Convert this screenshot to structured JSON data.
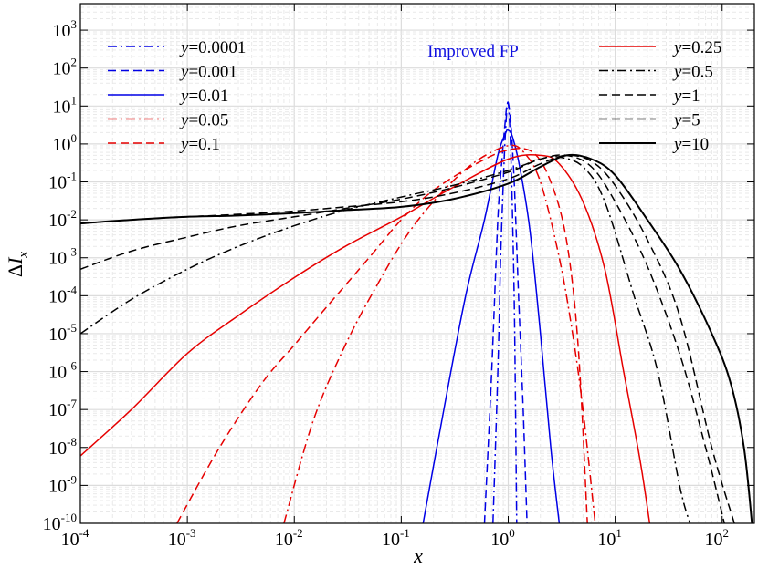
{
  "chart_data": {
    "type": "line",
    "title": "",
    "annotation": "Improved FP",
    "xlabel": "x",
    "ylabel_prefix": "Δ",
    "ylabel_var": "I",
    "ylabel_sub": "x",
    "x_scale": "log",
    "y_scale": "log",
    "xlim": [
      0.0001,
      200
    ],
    "ylim": [
      1e-10,
      5000
    ],
    "grid": true,
    "legend_placement": "top-left and top-right",
    "x_ticks": [
      {
        "base": "10",
        "exp": "-4",
        "value": 0.0001
      },
      {
        "base": "10",
        "exp": "-3",
        "value": 0.001
      },
      {
        "base": "10",
        "exp": "-2",
        "value": 0.01
      },
      {
        "base": "10",
        "exp": "-1",
        "value": 0.1
      },
      {
        "base": "10",
        "exp": "0",
        "value": 1
      },
      {
        "base": "10",
        "exp": "1",
        "value": 10
      },
      {
        "base": "10",
        "exp": "2",
        "value": 100
      }
    ],
    "y_ticks": [
      {
        "base": "10",
        "exp": "-10",
        "value": 1e-10
      },
      {
        "base": "10",
        "exp": "-9",
        "value": 1e-09
      },
      {
        "base": "10",
        "exp": "-8",
        "value": 1e-08
      },
      {
        "base": "10",
        "exp": "-7",
        "value": 1e-07
      },
      {
        "base": "10",
        "exp": "-6",
        "value": 1e-06
      },
      {
        "base": "10",
        "exp": "-5",
        "value": 1e-05
      },
      {
        "base": "10",
        "exp": "-4",
        "value": 0.0001
      },
      {
        "base": "10",
        "exp": "-3",
        "value": 0.001
      },
      {
        "base": "10",
        "exp": "-2",
        "value": 0.01
      },
      {
        "base": "10",
        "exp": "-1",
        "value": 0.1
      },
      {
        "base": "10",
        "exp": "0",
        "value": 1
      },
      {
        "base": "10",
        "exp": "1",
        "value": 10
      },
      {
        "base": "10",
        "exp": "2",
        "value": 100
      },
      {
        "base": "10",
        "exp": "3",
        "value": 1000
      }
    ],
    "series": [
      {
        "name": "y=0.0001",
        "var": "y",
        "value_text": "=0.0001",
        "color": "#0000e6",
        "dash": "dashdot",
        "legend_col": 0,
        "x": [
          0.72,
          0.8,
          0.85,
          0.9,
          0.93,
          0.96,
          0.98,
          1.0,
          1.02,
          1.05,
          1.1,
          1.15,
          1.2
        ],
        "y": [
          1e-10,
          1e-06,
          0.001,
          0.1,
          1,
          5,
          11,
          12,
          6,
          1,
          0.01,
          1e-05,
          1e-10
        ]
      },
      {
        "name": "y=0.001",
        "var": "y",
        "value_text": "=0.001",
        "color": "#0000e6",
        "dash": "dashed",
        "legend_col": 0,
        "x": [
          0.6,
          0.7,
          0.8,
          0.88,
          0.93,
          0.97,
          1.0,
          1.03,
          1.08,
          1.15,
          1.25,
          1.38,
          1.5
        ],
        "y": [
          1e-10,
          1e-06,
          0.01,
          0.5,
          3,
          10,
          12,
          7,
          1.5,
          0.05,
          0.0001,
          1e-07,
          1e-10
        ]
      },
      {
        "name": "y=0.01",
        "var": "y",
        "value_text": "=0.01",
        "color": "#0000e6",
        "dash": "solid",
        "legend_col": 0,
        "x": [
          0.16,
          0.25,
          0.4,
          0.6,
          0.8,
          0.95,
          1.0,
          1.1,
          1.3,
          1.6,
          2.0,
          2.5,
          3.0
        ],
        "y": [
          1e-10,
          1e-07,
          0.0001,
          0.01,
          0.5,
          2,
          2.3,
          1.5,
          0.2,
          0.005,
          1e-05,
          1e-08,
          1e-10
        ]
      },
      {
        "name": "y=0.05",
        "var": "y",
        "value_text": "=0.05",
        "color": "#e60000",
        "dash": "dashdot",
        "legend_col": 0,
        "x": [
          0.008,
          0.015,
          0.03,
          0.06,
          0.12,
          0.25,
          0.5,
          1.0,
          1.4,
          2.0,
          3.0,
          4.0,
          5.0,
          6.5
        ],
        "y": [
          1e-10,
          5e-08,
          5e-06,
          0.0002,
          0.005,
          0.06,
          0.35,
          0.9,
          0.6,
          0.1,
          0.001,
          1e-05,
          1e-07,
          1e-10
        ]
      },
      {
        "name": "y=0.1",
        "var": "y",
        "value_text": "=0.1",
        "color": "#e60000",
        "dash": "dashed",
        "legend_col": 0,
        "x": [
          0.0008,
          0.002,
          0.005,
          0.01,
          0.02,
          0.05,
          0.1,
          0.2,
          0.5,
          1.0,
          1.7,
          2.5,
          3.5,
          4.5,
          5.5
        ],
        "y": [
          1e-10,
          1e-08,
          5e-07,
          5e-06,
          5e-05,
          0.001,
          0.01,
          0.06,
          0.3,
          0.7,
          0.6,
          0.1,
          0.003,
          5e-06,
          1e-10
        ]
      },
      {
        "name": "y=0.25",
        "var": "y",
        "value_text": "=0.25",
        "color": "#e60000",
        "dash": "solid",
        "legend_col": 1,
        "x": [
          0.0001,
          0.0003,
          0.001,
          0.003,
          0.01,
          0.03,
          0.1,
          0.3,
          1.0,
          2.0,
          3.0,
          5.0,
          8.0,
          12.0,
          17.0,
          21.0
        ],
        "y": [
          6e-09,
          1e-07,
          3e-06,
          3e-05,
          0.0003,
          0.002,
          0.012,
          0.07,
          0.4,
          0.5,
          0.3,
          0.03,
          0.0005,
          1e-06,
          5e-09,
          1e-10
        ]
      },
      {
        "name": "y=0.5",
        "var": "y",
        "value_text": "=0.5",
        "color": "#000000",
        "dash": "dashdot",
        "legend_col": 1,
        "x": [
          0.0001,
          0.0003,
          0.001,
          0.003,
          0.01,
          0.03,
          0.1,
          0.3,
          1.0,
          2.0,
          3.0,
          5.0,
          8.0,
          15.0,
          25.0,
          40.0,
          50.0
        ],
        "y": [
          1e-05,
          8e-05,
          0.0005,
          0.002,
          0.007,
          0.018,
          0.04,
          0.08,
          0.2,
          0.4,
          0.45,
          0.25,
          0.03,
          0.0001,
          1e-06,
          1e-09,
          1e-10
        ]
      },
      {
        "name": "y=1",
        "var": "y",
        "value_text": "=1",
        "color": "#000000",
        "dash": "dashed",
        "legend_col": 1,
        "x": [
          0.0001,
          0.0003,
          0.001,
          0.003,
          0.01,
          0.03,
          0.1,
          0.3,
          1.0,
          2.0,
          3.5,
          6.0,
          10.0,
          20.0,
          40.0,
          70.0,
          105.0
        ],
        "y": [
          0.0005,
          0.0015,
          0.0035,
          0.007,
          0.012,
          0.02,
          0.035,
          0.07,
          0.18,
          0.4,
          0.5,
          0.25,
          0.03,
          0.0006,
          3e-06,
          1e-08,
          1e-10
        ]
      },
      {
        "name": "y=5",
        "var": "y",
        "value_text": "=5",
        "color": "#000000",
        "dash": "dashed",
        "legend_col": 1,
        "x": [
          0.0001,
          0.0003,
          0.001,
          0.003,
          0.01,
          0.03,
          0.1,
          0.3,
          1.0,
          2.0,
          3.5,
          6.0,
          10.0,
          20.0,
          40.0,
          80.0,
          130.0
        ],
        "y": [
          0.008,
          0.01,
          0.012,
          0.014,
          0.017,
          0.022,
          0.03,
          0.05,
          0.12,
          0.3,
          0.5,
          0.35,
          0.08,
          0.003,
          3e-05,
          1e-08,
          1e-10
        ]
      },
      {
        "name": "y=10",
        "var": "y",
        "value_text": "=10",
        "color": "#000000",
        "dash": "solid",
        "legend_col": 1,
        "x": [
          0.0001,
          0.0003,
          0.001,
          0.003,
          0.01,
          0.03,
          0.1,
          0.3,
          1.0,
          2.0,
          3.5,
          6.0,
          10.0,
          20.0,
          40.0,
          80.0,
          120.0,
          160.0,
          190.0
        ],
        "y": [
          0.008,
          0.01,
          0.012,
          0.013,
          0.015,
          0.018,
          0.022,
          0.035,
          0.09,
          0.25,
          0.5,
          0.4,
          0.15,
          0.01,
          0.0005,
          1e-05,
          5e-07,
          1e-08,
          1e-10
        ]
      }
    ]
  }
}
